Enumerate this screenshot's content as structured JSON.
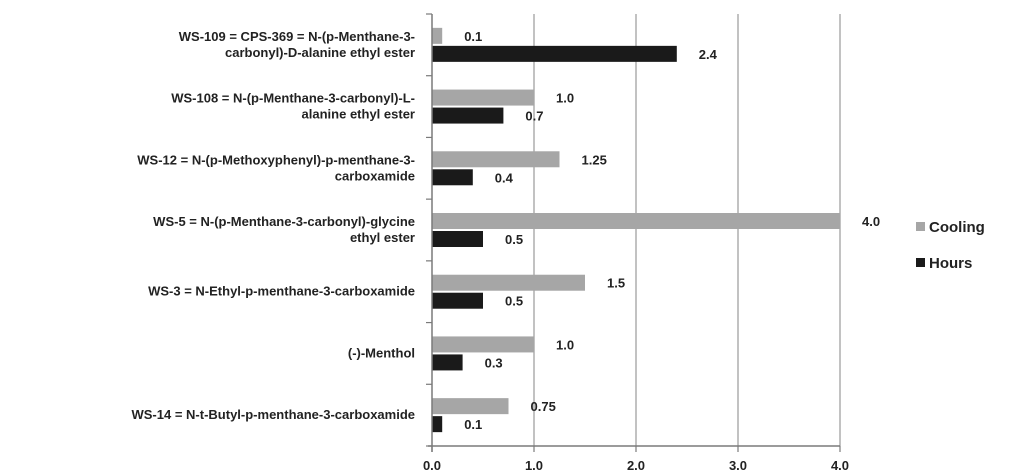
{
  "chart_data": {
    "type": "bar",
    "orientation": "horizontal",
    "categories": [
      [
        "WS-109 = CPS-369 = N-(p-Menthane-3-",
        "carbonyl)-D-alanine ethyl ester"
      ],
      [
        "WS-108 = N-(p-Menthane-3-carbonyl)-L-",
        "alanine ethyl ester"
      ],
      [
        "WS-12 = N-(p-Methoxyphenyl)-p-menthane-3-",
        "carboxamide"
      ],
      [
        "WS-5 = N-(p-Menthane-3-carbonyl)-glycine",
        "ethyl ester"
      ],
      [
        "WS-3 = N-Ethyl-p-menthane-3-carboxamide"
      ],
      [
        "(-)-Menthol"
      ],
      [
        "WS-14 = N-t-Butyl-p-menthane-3-carboxamide"
      ]
    ],
    "series": [
      {
        "name": "Cooling",
        "color": "#a6a6a6",
        "values": [
          0.1,
          1.0,
          1.25,
          4.0,
          1.5,
          1.0,
          0.75
        ],
        "labels": [
          "0.1",
          "1.0",
          "1.25",
          "4.0",
          "1.5",
          "1.0",
          "0.75"
        ]
      },
      {
        "name": "Hours",
        "color": "#1a1a1a",
        "values": [
          2.4,
          0.7,
          0.4,
          0.5,
          0.5,
          0.3,
          0.1
        ],
        "labels": [
          "2.4",
          "0.7",
          "0.4",
          "0.5",
          "0.5",
          "0.3",
          "0.1"
        ]
      }
    ],
    "xlim": [
      0,
      4
    ],
    "xticks": [
      "0.0",
      "1.0",
      "2.0",
      "3.0",
      "4.0"
    ],
    "xtick_values": [
      0,
      1,
      2,
      3,
      4
    ],
    "grid": true,
    "legend": "right"
  }
}
